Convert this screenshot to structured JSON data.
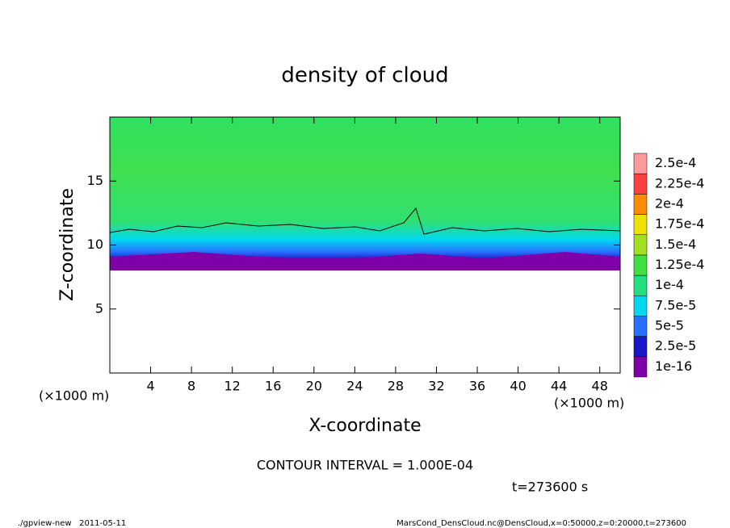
{
  "chart_data": {
    "type": "contour",
    "title": "density of cloud",
    "x_label": "X-coordinate",
    "y_label": "Z-coordinate",
    "x_unit": "(×1000 m)",
    "x_unit_right": "(×1000 m)",
    "xlim": [
      0,
      50
    ],
    "xticks": [
      4,
      8,
      12,
      16,
      20,
      24,
      28,
      32,
      36,
      40,
      44,
      48
    ],
    "ylim": [
      0,
      20
    ],
    "yticks": [
      5,
      10,
      15
    ],
    "contour_note": "CONTOUR INTERVAL = 1.000E-04",
    "time_label": "t=273600 s",
    "footer_left": "./gpview-new   2011-05-11",
    "footer_right": "MarsCond_DensCloud.nc@DensCloud,x=0:50000,z=0:20000,t=273600",
    "colorbar": {
      "levels": [
        {
          "value": 1e-16,
          "label": "1e-16"
        },
        {
          "value": 2.5e-05,
          "label": "2.5e-5"
        },
        {
          "value": 5e-05,
          "label": "5e-5"
        },
        {
          "value": 7.5e-05,
          "label": "7.5e-5"
        },
        {
          "value": 0.0001,
          "label": "1e-4"
        },
        {
          "value": 0.000125,
          "label": "1.25e-4"
        },
        {
          "value": 0.00015,
          "label": "1.5e-4"
        },
        {
          "value": 0.000175,
          "label": "1.75e-4"
        },
        {
          "value": 0.0002,
          "label": "2e-4"
        },
        {
          "value": 0.000225,
          "label": "2.25e-4"
        },
        {
          "value": 0.00025,
          "label": "2.5e-4"
        }
      ],
      "colors": [
        "#7f00a8",
        "#1818c8",
        "#2870ff",
        "#00d8f0",
        "#20e080",
        "#40e040",
        "#a0e020",
        "#f0e000",
        "#ff8c00",
        "#ff4040",
        "#ff9a9a"
      ]
    }
  }
}
